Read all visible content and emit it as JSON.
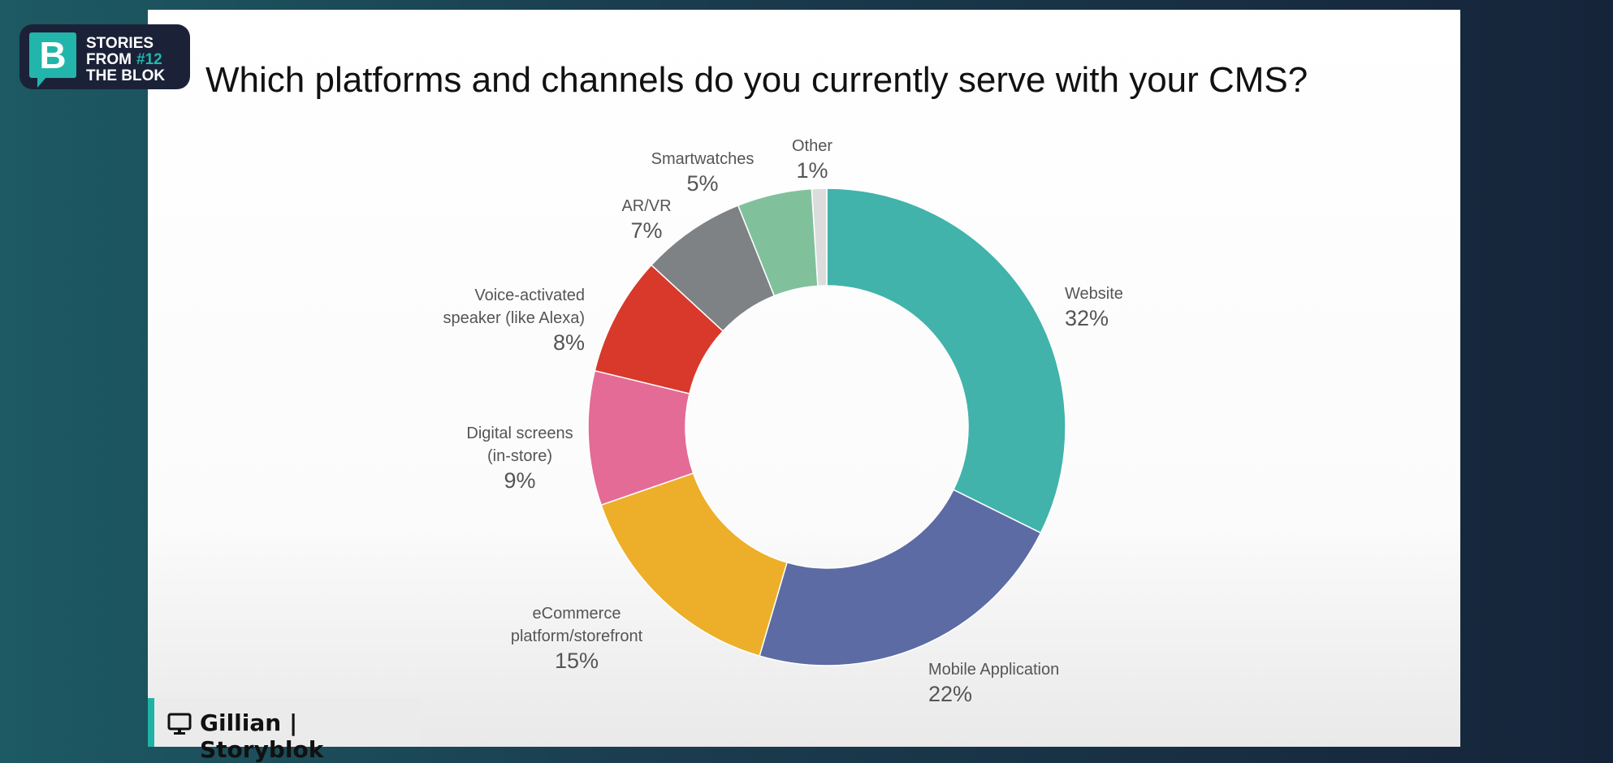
{
  "brand": {
    "line1": "STORIES",
    "line2": "FROM",
    "episode": "#12",
    "line3": "THE BLOK",
    "letter": "B"
  },
  "footer": {
    "speaker": "Gillian",
    "company": "Storyblok"
  },
  "chart_data": {
    "type": "pie",
    "donut": true,
    "title": "Which platforms and channels do you currently serve with your CMS?",
    "slices": [
      {
        "label": "Website",
        "value": 32,
        "pct": "32%",
        "color": "#41b3ab"
      },
      {
        "label": "Mobile Application",
        "value": 22,
        "pct": "22%",
        "color": "#5c6ba3"
      },
      {
        "label": "eCommerce platform/storefront",
        "line1": "eCommerce",
        "line2": "platform/storefront",
        "value": 15,
        "pct": "15%",
        "color": "#edae2a"
      },
      {
        "label": "Digital screens (in-store)",
        "line1": "Digital screens",
        "line2": "(in-store)",
        "value": 9,
        "pct": "9%",
        "color": "#e46b96"
      },
      {
        "label": "Voice-activated speaker (like Alexa)",
        "line1": "Voice-activated",
        "line2": "speaker (like Alexa)",
        "value": 8,
        "pct": "8%",
        "color": "#d8392b"
      },
      {
        "label": "AR/VR",
        "value": 7,
        "pct": "7%",
        "color": "#7f8285"
      },
      {
        "label": "Smartwatches",
        "value": 5,
        "pct": "5%",
        "color": "#80c19c"
      },
      {
        "label": "Other",
        "value": 1,
        "pct": "1%",
        "color": "#dcdcdc"
      }
    ]
  }
}
